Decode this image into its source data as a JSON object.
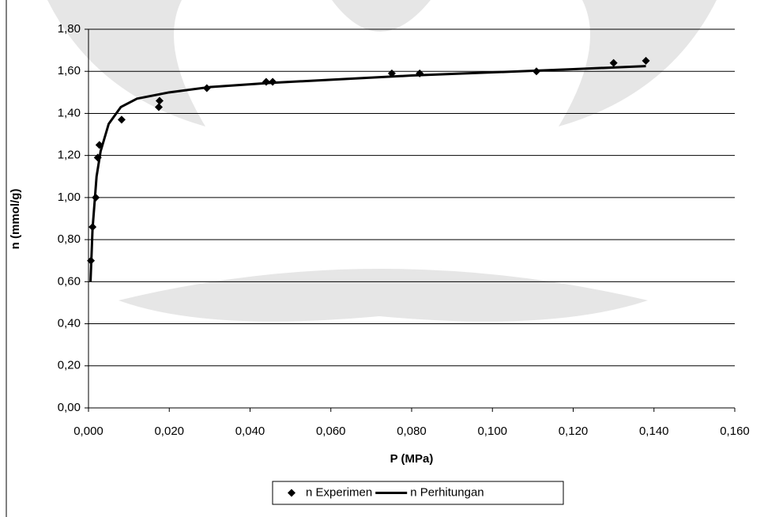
{
  "chart_data": {
    "type": "scatter",
    "x_label": "P (MPa)",
    "y_label": "n (mmol/g)",
    "xlim": [
      0,
      0.16
    ],
    "ylim": [
      0,
      1.8
    ],
    "xticks": [
      {
        "value": 0,
        "label": "0,000"
      },
      {
        "value": 0.02,
        "label": "0,020"
      },
      {
        "value": 0.04,
        "label": "0,040"
      },
      {
        "value": 0.06,
        "label": "0,060"
      },
      {
        "value": 0.08,
        "label": "0,080"
      },
      {
        "value": 0.1,
        "label": "0,100"
      },
      {
        "value": 0.12,
        "label": "0,120"
      },
      {
        "value": 0.14,
        "label": "0,140"
      },
      {
        "value": 0.16,
        "label": "0,160"
      }
    ],
    "yticks": [
      {
        "value": 0,
        "label": "0,00"
      },
      {
        "value": 0.2,
        "label": "0,20"
      },
      {
        "value": 0.4,
        "label": "0,40"
      },
      {
        "value": 0.6,
        "label": "0,60"
      },
      {
        "value": 0.8,
        "label": "0,80"
      },
      {
        "value": 1,
        "label": "1,00"
      },
      {
        "value": 1.2,
        "label": "1,20"
      },
      {
        "value": 1.4,
        "label": "1,40"
      },
      {
        "value": 1.6,
        "label": "1,60"
      },
      {
        "value": 1.8,
        "label": "1,80"
      }
    ],
    "grid": true,
    "legend": "bottom",
    "series": [
      {
        "name": "n Experimen",
        "kind": "markers",
        "color": "#000000",
        "x": [
          0.0006,
          0.001,
          0.0018,
          0.0023,
          0.0027,
          0.0082,
          0.0174,
          0.0176,
          0.0293,
          0.044,
          0.0456,
          0.0751,
          0.082,
          0.1109,
          0.13,
          0.138
        ],
        "values": [
          0.7,
          0.86,
          1.0,
          1.19,
          1.25,
          1.37,
          1.43,
          1.46,
          1.52,
          1.55,
          1.55,
          1.59,
          1.59,
          1.6,
          1.64,
          1.65
        ]
      },
      {
        "name": "n Perhitungan",
        "kind": "line",
        "color": "#000000",
        "x": [
          0.0005,
          0.001,
          0.002,
          0.003,
          0.005,
          0.008,
          0.012,
          0.02,
          0.03,
          0.045,
          0.06,
          0.08,
          0.1,
          0.12,
          0.138
        ],
        "values": [
          0.6,
          0.85,
          1.1,
          1.22,
          1.35,
          1.43,
          1.47,
          1.5,
          1.525,
          1.545,
          1.56,
          1.58,
          1.595,
          1.61,
          1.625
        ]
      }
    ]
  }
}
